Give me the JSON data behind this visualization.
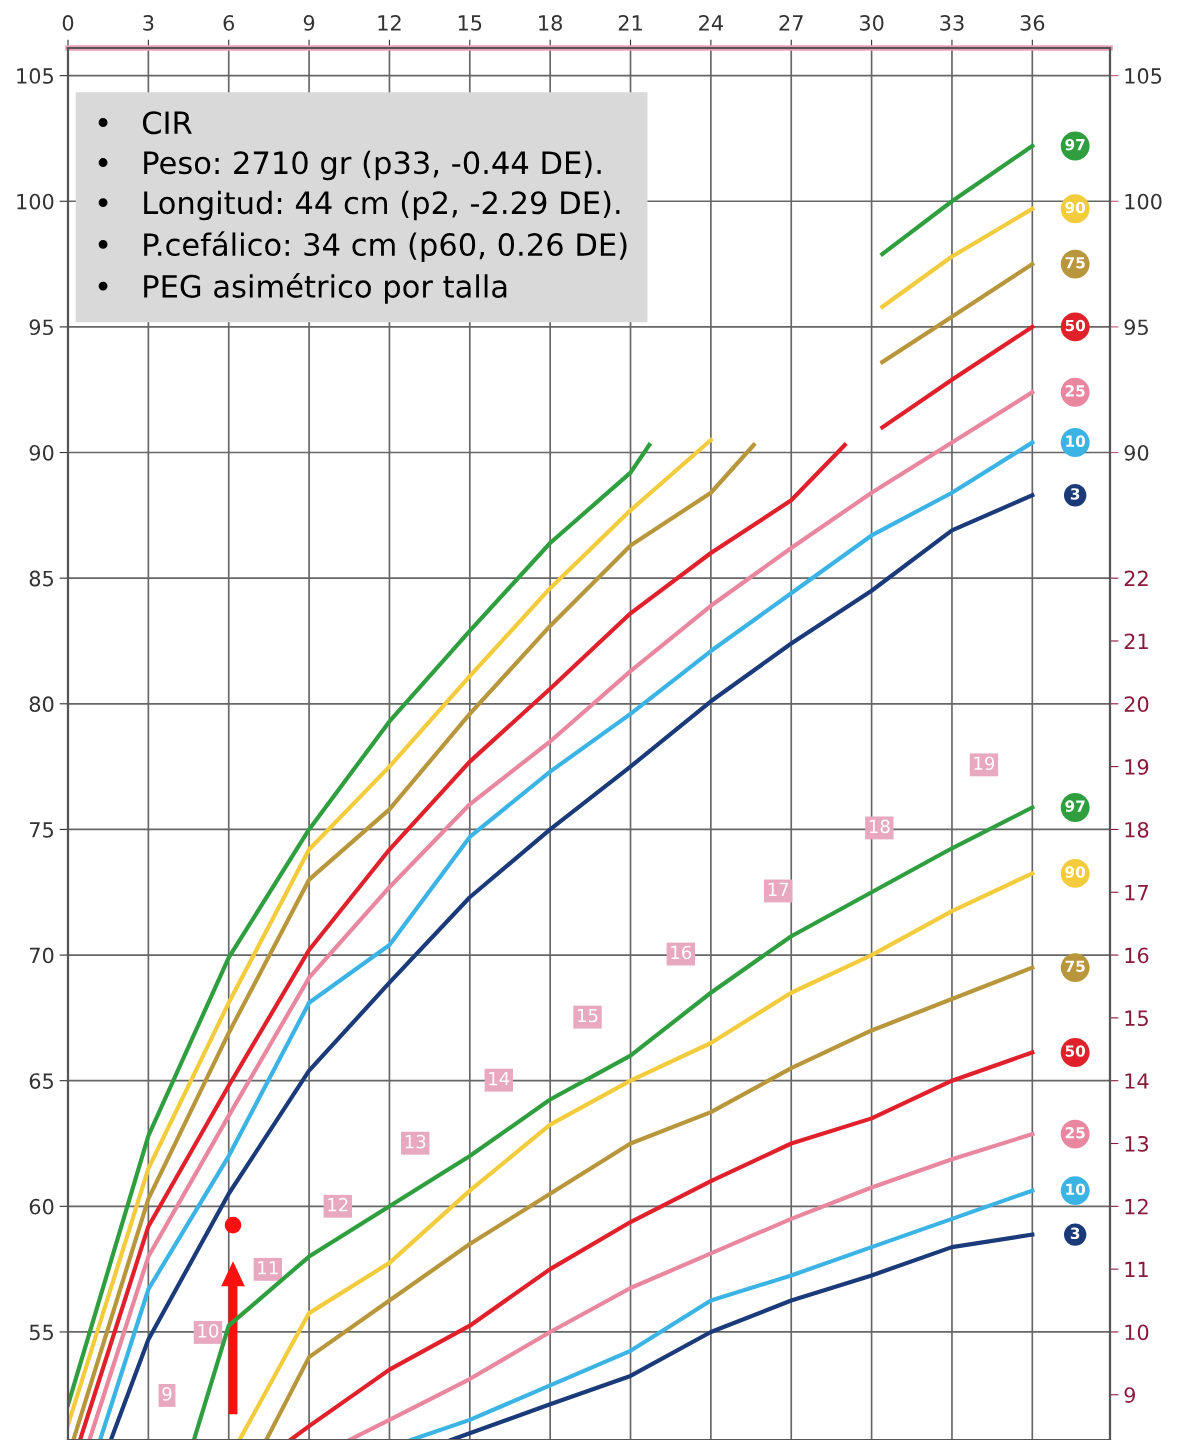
{
  "chart_data": {
    "type": "line",
    "xlim": [
      0,
      38.9
    ],
    "xticks": [
      0,
      3,
      6,
      9,
      12,
      15,
      18,
      21,
      24,
      27,
      30,
      33,
      36
    ],
    "ylim": [
      50.7,
      106.1
    ],
    "yticks": [
      55,
      60,
      65,
      70,
      75,
      80,
      85,
      90,
      95,
      100,
      105
    ],
    "y2lim": [
      8.28,
      30.44
    ],
    "y2ticks": [
      9,
      10,
      11,
      12,
      13,
      14,
      15,
      16,
      17,
      18,
      19,
      20,
      21,
      22
    ],
    "y3lim": [
      50.7,
      106.1
    ],
    "y3ticks": [
      90,
      95,
      100,
      105
    ],
    "grid": true,
    "series": [
      {
        "name": "97",
        "color": "#2e9e3e",
        "x": [
          0,
          3,
          6,
          9,
          12,
          15,
          18,
          21,
          21.7,
          26,
          30.4,
          33,
          36
        ],
        "values": [
          52.1,
          62.8,
          69.9,
          75.0,
          79.3,
          82.9,
          86.4,
          89.2,
          90.3,
          null,
          97.9,
          100.0,
          102.2
        ]
      },
      {
        "name": "90",
        "color": "#f2cc3d",
        "x": [
          0,
          3,
          6,
          9,
          12,
          15,
          18,
          21,
          24,
          27,
          30.4,
          33,
          36
        ],
        "values": [
          51.3,
          61.5,
          68.1,
          74.2,
          77.5,
          81.1,
          84.6,
          87.7,
          90.5,
          null,
          95.8,
          97.8,
          99.7
        ]
      },
      {
        "name": "75",
        "color": "#b8963c",
        "x": [
          0.2,
          3,
          6,
          9,
          12,
          15,
          18,
          21,
          24,
          25.6,
          28,
          30.4,
          33,
          36
        ],
        "values": [
          50.7,
          60.3,
          66.9,
          73.0,
          75.8,
          79.6,
          83.1,
          86.3,
          88.4,
          90.3,
          null,
          93.6,
          95.4,
          97.5
        ]
      },
      {
        "name": "50",
        "color": "#e0202a",
        "x": [
          0.45,
          3,
          6,
          9,
          12,
          15,
          18,
          21,
          24,
          27,
          29,
          29.7,
          30.4,
          33,
          36
        ],
        "values": [
          50.7,
          59.2,
          64.8,
          70.2,
          74.2,
          77.7,
          80.6,
          83.6,
          86.0,
          88.1,
          90.3,
          null,
          91.0,
          92.9,
          95.0
        ]
      },
      {
        "name": "25",
        "color": "#e8879f",
        "x": [
          0.8,
          3,
          6,
          9,
          12,
          15,
          18,
          21,
          24,
          27,
          30,
          33,
          36
        ],
        "values": [
          50.7,
          58.0,
          63.6,
          69.1,
          72.7,
          76.0,
          78.5,
          81.3,
          83.9,
          86.2,
          88.4,
          90.4,
          92.4
        ]
      },
      {
        "name": "10",
        "color": "#3bb4e5",
        "x": [
          1.2,
          3,
          6,
          9,
          12,
          15,
          18,
          21,
          24,
          27,
          30,
          33,
          36
        ],
        "values": [
          50.7,
          56.7,
          62.0,
          68.1,
          70.4,
          74.7,
          77.3,
          79.6,
          82.1,
          84.4,
          86.7,
          88.4,
          90.4
        ]
      },
      {
        "name": "3",
        "color": "#1a3a7a",
        "x": [
          1.6,
          3,
          6,
          9,
          12,
          15,
          18,
          21,
          24,
          27,
          30,
          33,
          36
        ],
        "values": [
          50.7,
          54.7,
          60.5,
          65.4,
          68.9,
          72.3,
          75.0,
          77.5,
          80.1,
          82.4,
          84.5,
          86.9,
          88.3
        ]
      },
      {
        "name": "97",
        "color": "#2e9e3e",
        "axis": "y2",
        "x": [
          4.7,
          6,
          9,
          12,
          15,
          18,
          21,
          24,
          27,
          30,
          33,
          36
        ],
        "values": [
          8.28,
          10.1,
          11.2,
          12.0,
          12.8,
          13.7,
          14.4,
          15.4,
          16.3,
          17.0,
          17.7,
          18.35
        ]
      },
      {
        "name": "90",
        "color": "#f2cc3d",
        "axis": "y2",
        "x": [
          6.4,
          9,
          12,
          15,
          18,
          21,
          24,
          27,
          30,
          33,
          36
        ],
        "values": [
          8.28,
          10.3,
          11.1,
          12.25,
          13.3,
          14.0,
          14.6,
          15.4,
          16.0,
          16.7,
          17.3
        ]
      },
      {
        "name": "75",
        "color": "#b8963c",
        "axis": "y2",
        "x": [
          7.4,
          9,
          12,
          15,
          18,
          21,
          24,
          27,
          30,
          33,
          36
        ],
        "values": [
          8.28,
          9.6,
          10.5,
          11.4,
          12.2,
          13.0,
          13.5,
          14.2,
          14.8,
          15.3,
          15.8
        ]
      },
      {
        "name": "50",
        "color": "#e0202a",
        "axis": "y2",
        "x": [
          8.3,
          9,
          12,
          15,
          18,
          21,
          24,
          27,
          30,
          33,
          36
        ],
        "values": [
          8.28,
          8.5,
          9.4,
          10.1,
          11.0,
          11.75,
          12.4,
          13.0,
          13.4,
          14.0,
          14.45
        ]
      },
      {
        "name": "25",
        "color": "#e8879f",
        "axis": "y2",
        "x": [
          10.5,
          12,
          15,
          18,
          21,
          24,
          27,
          30,
          33,
          36
        ],
        "values": [
          8.28,
          8.6,
          9.25,
          10.0,
          10.7,
          11.25,
          11.8,
          12.3,
          12.75,
          13.15
        ]
      },
      {
        "name": "10",
        "color": "#3bb4e5",
        "axis": "y2",
        "x": [
          12.8,
          15,
          18,
          21,
          24,
          27,
          30,
          33,
          36
        ],
        "values": [
          8.28,
          8.6,
          9.15,
          9.7,
          10.5,
          10.9,
          11.35,
          11.8,
          12.25
        ]
      },
      {
        "name": "3",
        "color": "#1a3a7a",
        "axis": "y2",
        "x": [
          14.3,
          18,
          21,
          24,
          27,
          30,
          33,
          36
        ],
        "values": [
          8.28,
          8.85,
          9.3,
          10.0,
          10.5,
          10.9,
          11.35,
          11.55
        ]
      },
      {
        "type": "scatter",
        "color": "#ff1010",
        "x": [
          6.16
        ],
        "values": [
          59.25
        ]
      }
    ],
    "annotations": [
      "•   CIR",
      "•   Peso: 2710 gr (p33, -0.44 DE).",
      "•   Longitud: 44 cm (p2, -2.29 DE).",
      "•   P.cefálico: 34 cm (p60, 0.26 DE)",
      "•   PEG asimétrico por talla",
      "9",
      "10",
      "11",
      "12",
      "13",
      "14",
      "15",
      "16",
      "17",
      "18",
      "19"
    ]
  }
}
